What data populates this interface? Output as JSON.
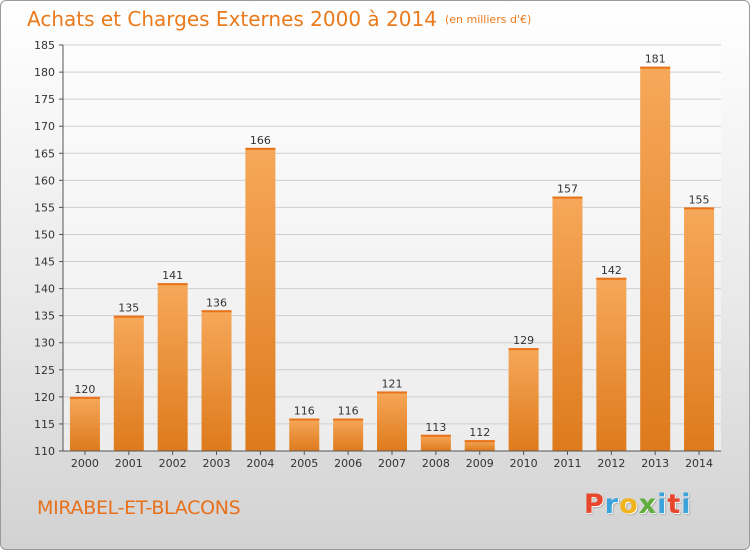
{
  "title": "Achats et Charges Externes 2000 à 2014",
  "subtitle": "(en milliers d'€)",
  "commune": "MIRABEL-ET-BLACONS",
  "brand": {
    "letters": [
      "P",
      "r",
      "o",
      "x",
      "i",
      "t",
      "i"
    ],
    "colors": [
      "#e8462a",
      "#3ba3dc",
      "#f2b41c",
      "#5fae3b",
      "#3ba3dc",
      "#e8462a",
      "#3ba3dc"
    ]
  },
  "chart_data": {
    "type": "bar",
    "title": "Achats et Charges Externes 2000 à 2014",
    "categories": [
      "2000",
      "2001",
      "2002",
      "2003",
      "2004",
      "2005",
      "2006",
      "2007",
      "2008",
      "2009",
      "2010",
      "2011",
      "2012",
      "2013",
      "2014"
    ],
    "values": [
      120,
      135,
      141,
      136,
      166,
      116,
      116,
      121,
      113,
      112,
      129,
      157,
      142,
      181,
      155
    ],
    "ylim": [
      110,
      185
    ],
    "yticks": [
      110,
      115,
      120,
      125,
      130,
      135,
      140,
      145,
      150,
      155,
      160,
      165,
      170,
      175,
      180,
      185
    ],
    "grid": true,
    "bar_color_top": "#f6a85a",
    "bar_color_bottom": "#e07b1e"
  }
}
